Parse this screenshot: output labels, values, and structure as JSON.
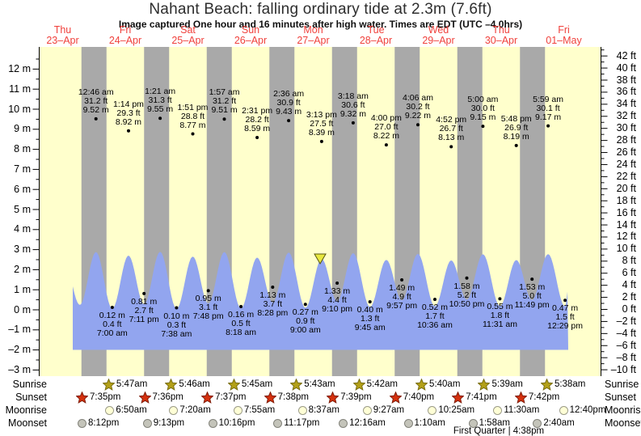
{
  "chart_data": {
    "type": "area",
    "title": "Nahant Beach: falling  ordinary tide at 2.3m (7.6ft)",
    "subtitle": "Image captured One hour and 16 minutes after high water. Times are EDT (UTC –4.0hrs)",
    "days": [
      {
        "dow": "Thu",
        "date": "23–Apr"
      },
      {
        "dow": "Fri",
        "date": "24–Apr"
      },
      {
        "dow": "Sat",
        "date": "25–Apr"
      },
      {
        "dow": "Sun",
        "date": "26–Apr"
      },
      {
        "dow": "Mon",
        "date": "27–Apr"
      },
      {
        "dow": "Tue",
        "date": "28–Apr"
      },
      {
        "dow": "Wed",
        "date": "29–Apr"
      },
      {
        "dow": "Thu",
        "date": "30–Apr"
      },
      {
        "dow": "Fri",
        "date": "01–May"
      }
    ],
    "yticks_left_m": [
      12,
      11,
      10,
      9,
      8,
      7,
      6,
      5,
      4,
      3,
      2,
      1,
      0,
      -1,
      -2,
      -3
    ],
    "yticks_right_ft": [
      42,
      40,
      38,
      36,
      34,
      32,
      30,
      28,
      26,
      24,
      22,
      20,
      18,
      16,
      14,
      12,
      10,
      8,
      6,
      4,
      2,
      0,
      -2,
      -4,
      -6,
      -8,
      -10
    ],
    "unit_left": "m",
    "unit_right": "ft",
    "colors": {
      "day_bg": "#ffffcc",
      "night_band": "#a9a9a9",
      "curve_fill": "#92a5ef",
      "day_label_red": "#f0413c",
      "marker_yellow": "#e8e83f"
    },
    "tide_events": [
      {
        "day": 1,
        "time": "12:46 am",
        "ft": "31.2 ft",
        "m": "9.52 m",
        "type": "high"
      },
      {
        "day": 1,
        "time": "7:00 am",
        "ft": "0.4 ft",
        "m": "0.12 m",
        "type": "low"
      },
      {
        "day": 1,
        "time": "1:14 pm",
        "ft": "29.3 ft",
        "m": "8.92 m",
        "type": "high"
      },
      {
        "day": 1,
        "time": "7:11 pm",
        "ft": "2.7 ft",
        "m": "0.81 m",
        "type": "low"
      },
      {
        "day": 2,
        "time": "1:21 am",
        "ft": "31.3 ft",
        "m": "9.55 m",
        "type": "high"
      },
      {
        "day": 2,
        "time": "7:38 am",
        "ft": "0.3 ft",
        "m": "0.10 m",
        "type": "low"
      },
      {
        "day": 2,
        "time": "1:51 pm",
        "ft": "28.8 ft",
        "m": "8.77 m",
        "type": "high"
      },
      {
        "day": 2,
        "time": "7:48 pm",
        "ft": "3.1 ft",
        "m": "0.95 m",
        "type": "low"
      },
      {
        "day": 3,
        "time": "1:57 am",
        "ft": "31.2 ft",
        "m": "9.51 m",
        "type": "high"
      },
      {
        "day": 3,
        "time": "8:18 am",
        "ft": "0.5 ft",
        "m": "0.16 m",
        "type": "low"
      },
      {
        "day": 3,
        "time": "2:31 pm",
        "ft": "28.2 ft",
        "m": "8.59 m",
        "type": "high"
      },
      {
        "day": 3,
        "time": "8:28 pm",
        "ft": "3.7 ft",
        "m": "1.13 m",
        "type": "low"
      },
      {
        "day": 4,
        "time": "2:36 am",
        "ft": "30.9 ft",
        "m": "9.43 m",
        "type": "high"
      },
      {
        "day": 4,
        "time": "9:00 am",
        "ft": "0.9 ft",
        "m": "0.27 m",
        "type": "low"
      },
      {
        "day": 4,
        "time": "3:13 pm",
        "ft": "27.5 ft",
        "m": "8.39 m",
        "type": "high"
      },
      {
        "day": 4,
        "time": "9:10 pm",
        "ft": "4.4 ft",
        "m": "1.33 m",
        "type": "low"
      },
      {
        "day": 5,
        "time": "3:18 am",
        "ft": "30.6 ft",
        "m": "9.32 m",
        "type": "high"
      },
      {
        "day": 5,
        "time": "9:45 am",
        "ft": "1.3 ft",
        "m": "0.40 m",
        "type": "low"
      },
      {
        "day": 5,
        "time": "4:00 pm",
        "ft": "27.0 ft",
        "m": "8.22 m",
        "type": "high"
      },
      {
        "day": 5,
        "time": "9:57 pm",
        "ft": "4.9 ft",
        "m": "1.49 m",
        "type": "low"
      },
      {
        "day": 6,
        "time": "4:06 am",
        "ft": "30.2 ft",
        "m": "9.22 m",
        "type": "high"
      },
      {
        "day": 6,
        "time": "10:36 am",
        "ft": "1.7 ft",
        "m": "0.52 m",
        "type": "low"
      },
      {
        "day": 6,
        "time": "4:52 pm",
        "ft": "26.7 ft",
        "m": "8.13 m",
        "type": "high"
      },
      {
        "day": 6,
        "time": "10:50 pm",
        "ft": "5.2 ft",
        "m": "1.58 m",
        "type": "low"
      },
      {
        "day": 7,
        "time": "5:00 am",
        "ft": "30.0 ft",
        "m": "9.15 m",
        "type": "high"
      },
      {
        "day": 7,
        "time": "11:31 am",
        "ft": "1.8 ft",
        "m": "0.55 m",
        "type": "low"
      },
      {
        "day": 7,
        "time": "5:48 pm",
        "ft": "26.9 ft",
        "m": "8.19 m",
        "type": "high"
      },
      {
        "day": 7,
        "time": "11:49 pm",
        "ft": "5.0 ft",
        "m": "1.53 m",
        "type": "low"
      },
      {
        "day": 8,
        "time": "5:59 am",
        "ft": "30.1 ft",
        "m": "9.17 m",
        "type": "high"
      },
      {
        "day": 8,
        "time": "12:29 pm",
        "ft": "1.5 ft",
        "m": "0.47 m",
        "type": "low"
      }
    ],
    "current_marker": {
      "day": 4.61,
      "value_m": 2.3
    }
  },
  "astro": {
    "rows": [
      {
        "label": "Sunrise",
        "icon": "sunrise-star",
        "events": [
          {
            "day": 1,
            "time": "5:47am"
          },
          {
            "day": 2,
            "time": "5:46am"
          },
          {
            "day": 3,
            "time": "5:45am"
          },
          {
            "day": 4,
            "time": "5:43am"
          },
          {
            "day": 5,
            "time": "5:42am"
          },
          {
            "day": 6,
            "time": "5:40am"
          },
          {
            "day": 7,
            "time": "5:39am"
          },
          {
            "day": 8,
            "time": "5:38am"
          }
        ]
      },
      {
        "label": "Sunset",
        "icon": "sunset-star",
        "events": [
          {
            "day": 0,
            "time": "7:35pm"
          },
          {
            "day": 1,
            "time": "7:36pm"
          },
          {
            "day": 2,
            "time": "7:37pm"
          },
          {
            "day": 3,
            "time": "7:38pm"
          },
          {
            "day": 4,
            "time": "7:39pm"
          },
          {
            "day": 5,
            "time": "7:40pm"
          },
          {
            "day": 6,
            "time": "7:41pm"
          },
          {
            "day": 7,
            "time": "7:42pm"
          }
        ]
      },
      {
        "label": "Moonrise",
        "icon": "moonrise-circle",
        "events": [
          {
            "day": 1,
            "time": "6:50am"
          },
          {
            "day": 2,
            "time": "7:20am"
          },
          {
            "day": 3,
            "time": "7:55am"
          },
          {
            "day": 4,
            "time": "8:37am"
          },
          {
            "day": 5,
            "time": "9:27am"
          },
          {
            "day": 6,
            "time": "10:25am"
          },
          {
            "day": 7,
            "time": "11:30am"
          },
          {
            "day": 8,
            "time": "12:40pm"
          }
        ]
      },
      {
        "label": "Moonset",
        "icon": "moonset-circle",
        "events": [
          {
            "day": 0,
            "time": "8:12pm"
          },
          {
            "day": 1,
            "time": "9:13pm"
          },
          {
            "day": 2,
            "time": "10:16pm"
          },
          {
            "day": 3,
            "time": "11:17pm"
          },
          {
            "day": 5,
            "time": "12:16am"
          },
          {
            "day": 6,
            "time": "1:10am"
          },
          {
            "day": 7,
            "time": "1:58am"
          },
          {
            "day": 8,
            "time": "2:40am"
          }
        ]
      }
    ],
    "moon_phase": "First Quarter | 4:38pm"
  }
}
